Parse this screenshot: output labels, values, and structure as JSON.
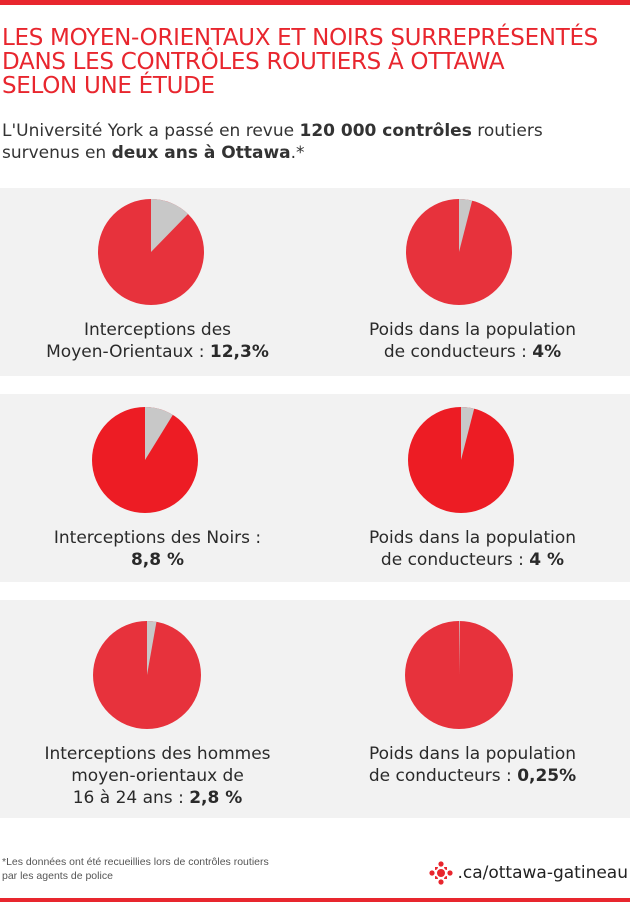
{
  "title_lines": [
    "LES MOYEN-ORIENTAUX ET NOIRS SURREPRÉSENTÉS",
    "DANS LES CONTRÔLES ROUTIERS À OTTAWA",
    "SELON UNE ÉTUDE"
  ],
  "intro": {
    "p1": "L'Université York a passé en revue ",
    "b1": "120 000 contrôles",
    "p2": " routiers",
    "p3": "survenus en ",
    "b2": "deux ans à Ottawa",
    "p4": ".*"
  },
  "colors": {
    "accent": "#e8262e",
    "pie_red": "#e7323c",
    "pie_red_bright": "#ed1c24",
    "pie_grey": "#c8c8c8",
    "panel_bg": "#f2f2f2"
  },
  "chart_data": [
    {
      "type": "pie",
      "label_lines": [
        "Interceptions des",
        "Moyen-Orientaux : "
      ],
      "value_text": "12,3%",
      "slices": [
        {
          "name": "highlight",
          "value": 12.3
        },
        {
          "name": "rest",
          "value": 87.7
        }
      ]
    },
    {
      "type": "pie",
      "label_lines": [
        "Poids dans la population",
        "de conducteurs : "
      ],
      "value_text": "4%",
      "slices": [
        {
          "name": "highlight",
          "value": 4
        },
        {
          "name": "rest",
          "value": 96
        }
      ]
    },
    {
      "type": "pie",
      "label_lines": [
        "Interceptions des Noirs :",
        ""
      ],
      "value_text": "8,8 %",
      "slices": [
        {
          "name": "highlight",
          "value": 8.8
        },
        {
          "name": "rest",
          "value": 91.2
        }
      ]
    },
    {
      "type": "pie",
      "label_lines": [
        "Poids dans la population",
        "de conducteurs : "
      ],
      "value_text": "4 %",
      "slices": [
        {
          "name": "highlight",
          "value": 4
        },
        {
          "name": "rest",
          "value": 96
        }
      ]
    },
    {
      "type": "pie",
      "label_lines": [
        "Interceptions des hommes",
        "moyen-orientaux de",
        "16 à 24 ans : "
      ],
      "value_text": "2,8 %",
      "slices": [
        {
          "name": "highlight",
          "value": 2.8
        },
        {
          "name": "rest",
          "value": 97.2
        }
      ]
    },
    {
      "type": "pie",
      "label_lines": [
        "Poids dans la population",
        "de conducteurs : "
      ],
      "value_text": "0,25%",
      "slices": [
        {
          "name": "highlight",
          "value": 0.25
        },
        {
          "name": "rest",
          "value": 99.75
        }
      ]
    }
  ],
  "footnote_lines": [
    "*Les données ont été recueillies lors de contrôles routiers",
    "par les agents de police"
  ],
  "brand": {
    "icon": "radio-canada-gem-icon",
    "text": ".ca/ottawa-gatineau"
  }
}
